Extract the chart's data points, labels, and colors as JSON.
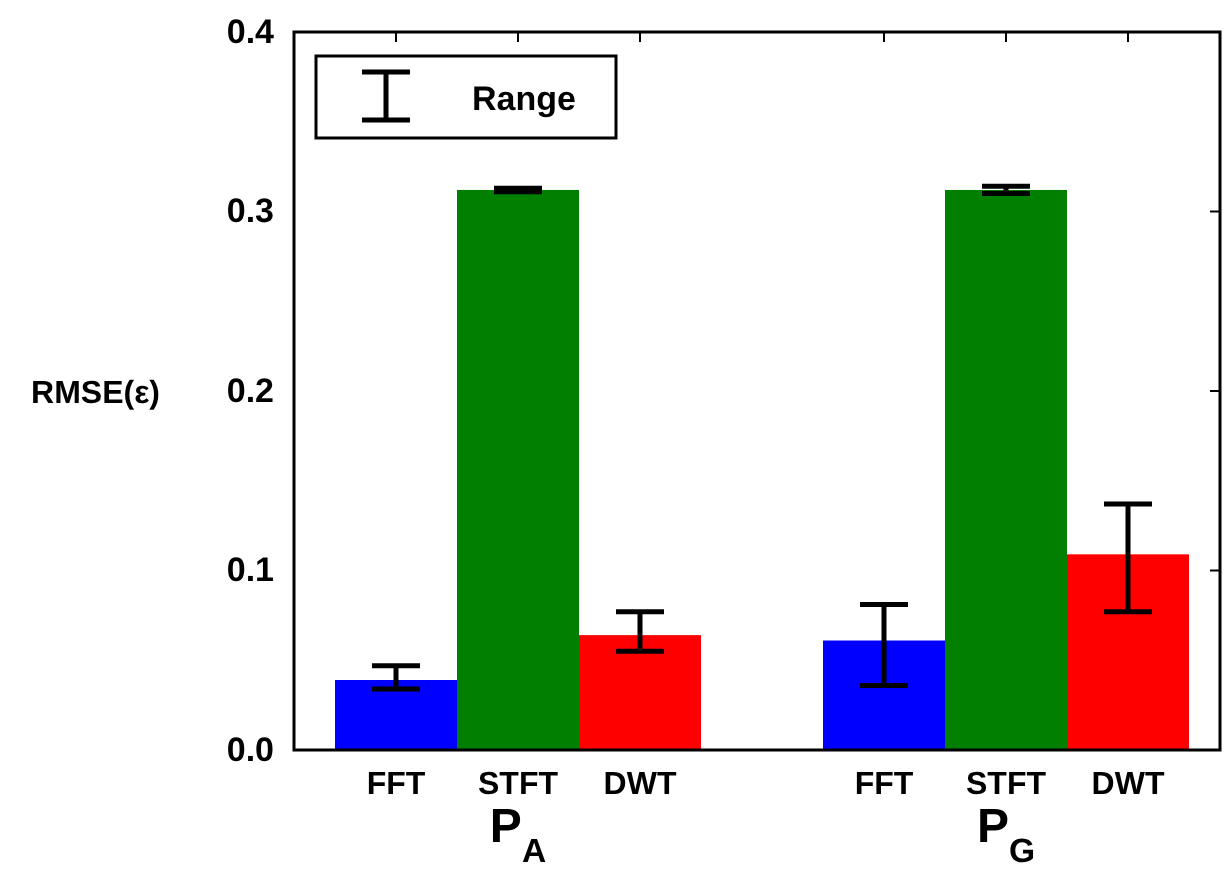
{
  "chart_data": {
    "type": "bar",
    "ylabel": "RMSE(ε)",
    "categories": [
      "FFT",
      "STFT",
      "DWT",
      null,
      "FFT",
      "STFT",
      "DWT"
    ],
    "values": [
      0.039,
      0.312,
      0.064,
      null,
      0.061,
      0.312,
      0.109
    ],
    "colors": [
      "#0000ff",
      "#007f00",
      "#ff0000",
      null,
      "#0000ff",
      "#007f00",
      "#ff0000"
    ],
    "errors": [
      [
        0.034,
        0.047
      ],
      [
        0.311,
        0.313
      ],
      [
        0.055,
        0.077
      ],
      null,
      [
        0.036,
        0.081
      ],
      [
        0.31,
        0.314
      ],
      [
        0.077,
        0.137
      ]
    ],
    "annotations": [
      "P$_{A}$",
      "P$_{G}$",
      "Range"
    ],
    "ylim": [
      0,
      0.4
    ],
    "yticks": [
      {
        "value": 0,
        "label": "0.0"
      },
      {
        "value": 0.1,
        "label": "0.1"
      },
      {
        "value": 0.2,
        "label": "0.2"
      },
      {
        "value": 0.3,
        "label": "0.3"
      },
      {
        "value": 0.4,
        "label": "0.4"
      }
    ],
    "grid": false
  }
}
